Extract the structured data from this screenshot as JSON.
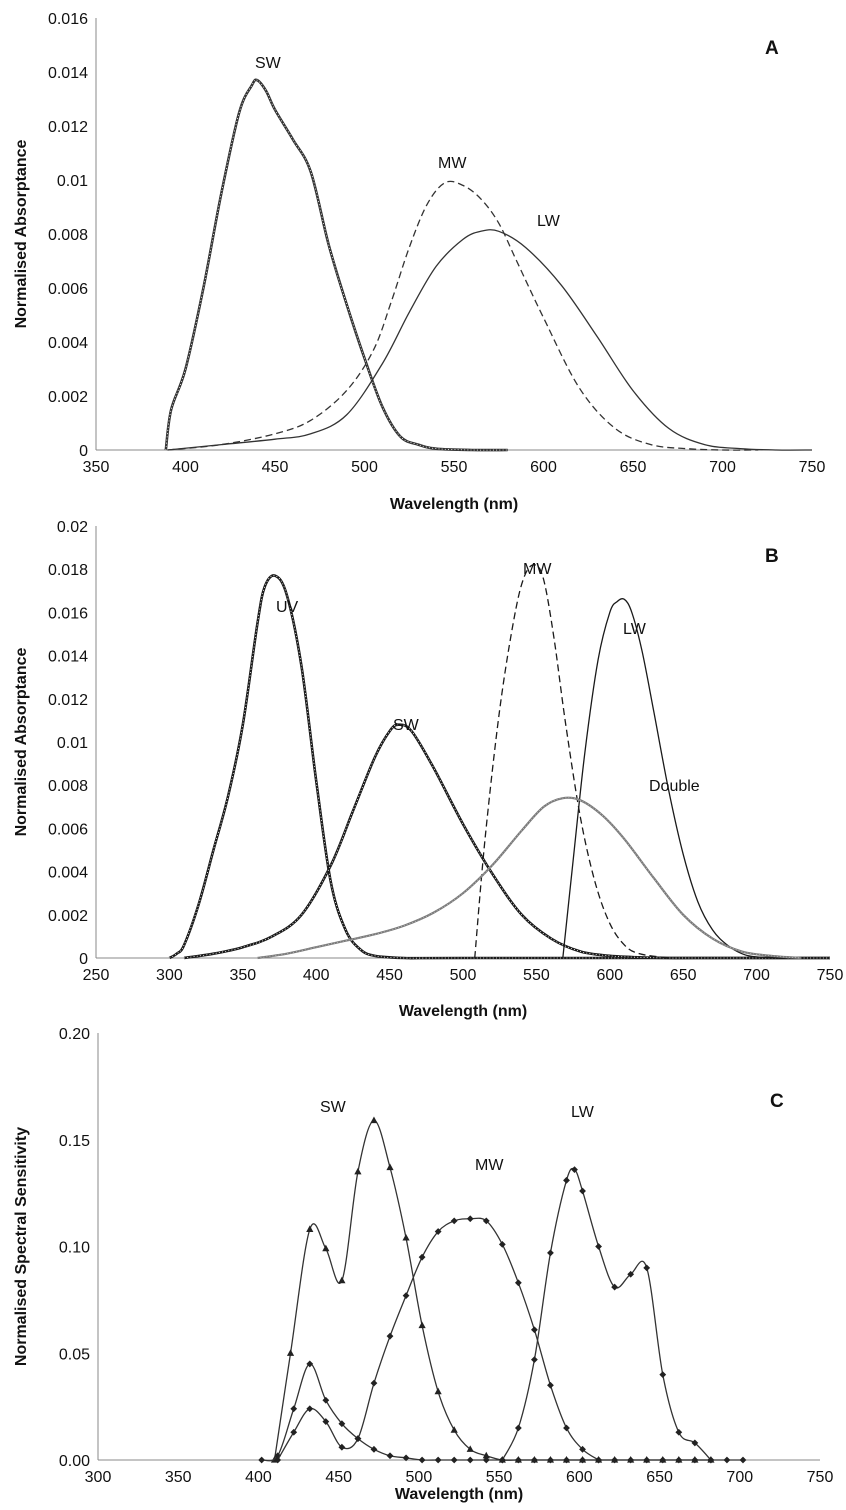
{
  "chart_data": [
    {
      "type": "line",
      "panel_label": "A",
      "xlabel": "Wavelength (nm)",
      "ylabel": "Normalised Absorptance",
      "xlim": [
        350,
        750
      ],
      "ylim": [
        0,
        0.016
      ],
      "x_ticks": [
        "350",
        "400",
        "450",
        "500",
        "550",
        "600",
        "650",
        "700",
        "750"
      ],
      "y_ticks": [
        "0",
        "0.002",
        "0.004",
        "0.006",
        "0.008",
        "0.01",
        "0.012",
        "0.014",
        "0.016"
      ],
      "grid": false,
      "legend": "none (series labelled directly)",
      "series": [
        {
          "name": "SW",
          "style": "dotted-heavy",
          "color": "#333333",
          "x": [
            389,
            392,
            400,
            410,
            420,
            430,
            437,
            440,
            445,
            450,
            460,
            470,
            480,
            490,
            500,
            510,
            520,
            530,
            540,
            560,
            580
          ],
          "y": [
            0,
            0.0015,
            0.003,
            0.006,
            0.0095,
            0.0125,
            0.0135,
            0.0137,
            0.0133,
            0.0126,
            0.0115,
            0.0103,
            0.0076,
            0.0054,
            0.0034,
            0.0016,
            0.0005,
            0.0002,
            5e-05,
            0,
            0
          ]
        },
        {
          "name": "MW",
          "style": "dashed",
          "color": "#333333",
          "x": [
            390,
            420,
            450,
            470,
            490,
            505,
            515,
            525,
            535,
            545,
            555,
            565,
            575,
            585,
            600,
            620,
            640,
            660,
            680,
            700,
            720
          ],
          "y": [
            0,
            0.0002,
            0.0006,
            0.0011,
            0.0022,
            0.0037,
            0.0055,
            0.0075,
            0.0091,
            0.0099,
            0.0098,
            0.0093,
            0.0084,
            0.007,
            0.0049,
            0.0023,
            0.0008,
            0.0002,
            5e-05,
            0,
            0
          ]
        },
        {
          "name": "LW",
          "style": "solid",
          "color": "#333333",
          "x": [
            390,
            420,
            450,
            470,
            490,
            510,
            525,
            540,
            555,
            565,
            575,
            590,
            610,
            630,
            650,
            670,
            690,
            710,
            730,
            750
          ],
          "y": [
            0,
            0.0002,
            0.0004,
            0.0006,
            0.0013,
            0.0032,
            0.0051,
            0.0068,
            0.0078,
            0.0081,
            0.0081,
            0.0075,
            0.0061,
            0.0042,
            0.0022,
            0.0008,
            0.0002,
            5e-05,
            0,
            0
          ]
        }
      ]
    },
    {
      "type": "line",
      "panel_label": "B",
      "xlabel": "Wavelength (nm)",
      "ylabel": "Normalised Absorptance",
      "xlim": [
        250,
        750
      ],
      "ylim": [
        0,
        0.02
      ],
      "x_ticks": [
        "250",
        "300",
        "350",
        "400",
        "450",
        "500",
        "550",
        "600",
        "650",
        "700",
        "750"
      ],
      "y_ticks": [
        "0",
        "0.002",
        "0.004",
        "0.006",
        "0.008",
        "0.01",
        "0.012",
        "0.014",
        "0.016",
        "0.018",
        "0.02"
      ],
      "grid": false,
      "legend": "none (series labelled directly)",
      "series": [
        {
          "name": "UV",
          "style": "dotted-heavy",
          "color": "#1a1a1a",
          "x": [
            300,
            305,
            310,
            320,
            330,
            340,
            350,
            360,
            365,
            372,
            380,
            390,
            400,
            410,
            420,
            430,
            440,
            460,
            500,
            750
          ],
          "y": [
            0,
            0.0002,
            0.0006,
            0.0025,
            0.005,
            0.0075,
            0.0108,
            0.0155,
            0.0172,
            0.0177,
            0.0168,
            0.0135,
            0.0082,
            0.0035,
            0.0013,
            0.0004,
            0.0001,
            0,
            0,
            0
          ]
        },
        {
          "name": "SW",
          "style": "dotted-heavy",
          "color": "#1a1a1a",
          "x": [
            310,
            330,
            350,
            370,
            390,
            410,
            425,
            440,
            450,
            456,
            465,
            480,
            500,
            520,
            540,
            560,
            580,
            600,
            620,
            640,
            660,
            750
          ],
          "y": [
            0,
            0.0002,
            0.0005,
            0.001,
            0.002,
            0.0043,
            0.0068,
            0.0093,
            0.0105,
            0.0108,
            0.0105,
            0.0088,
            0.0062,
            0.0039,
            0.002,
            0.0009,
            0.0003,
            0.0001,
            3e-05,
            0,
            0,
            0
          ]
        },
        {
          "name": "MW",
          "style": "dashed",
          "color": "#1a1a1a",
          "x": [
            508,
            515,
            525,
            535,
            542,
            549,
            555,
            562,
            570,
            580,
            590,
            600,
            610,
            620,
            640
          ],
          "y": [
            0,
            0.0055,
            0.0115,
            0.0158,
            0.0177,
            0.0182,
            0.0175,
            0.0148,
            0.0108,
            0.0065,
            0.0035,
            0.0016,
            0.0006,
            0.0002,
            0
          ]
        },
        {
          "name": "LW",
          "style": "solid",
          "color": "#1a1a1a",
          "x": [
            568,
            575,
            583,
            592,
            600,
            605,
            610,
            615,
            622,
            630,
            640,
            650,
            660,
            670,
            680,
            690,
            700,
            720
          ],
          "y": [
            0,
            0.0045,
            0.0095,
            0.0138,
            0.016,
            0.0165,
            0.0166,
            0.016,
            0.0142,
            0.0114,
            0.0078,
            0.0048,
            0.0026,
            0.0013,
            0.0006,
            0.0002,
            5e-05,
            0
          ]
        },
        {
          "name": "Double",
          "style": "solid-gray-dotted",
          "color": "#7a7a7a",
          "x": [
            360,
            380,
            400,
            420,
            440,
            460,
            480,
            500,
            520,
            540,
            555,
            568,
            580,
            595,
            610,
            630,
            650,
            670,
            690,
            710,
            730
          ],
          "y": [
            0,
            0.0002,
            0.0005,
            0.0008,
            0.0011,
            0.0015,
            0.0021,
            0.003,
            0.0043,
            0.0059,
            0.007,
            0.0074,
            0.0073,
            0.0066,
            0.0055,
            0.0037,
            0.002,
            0.0009,
            0.0003,
            0.0001,
            0
          ]
        }
      ]
    },
    {
      "type": "line",
      "panel_label": "C",
      "xlabel": "Wavelength (nm)",
      "ylabel": "Normalised Spectral Sensitivity",
      "xlim": [
        300,
        750
      ],
      "ylim": [
        0,
        0.2
      ],
      "x_ticks": [
        "300",
        "350",
        "400",
        "450",
        "500",
        "550",
        "600",
        "650",
        "700",
        "750"
      ],
      "y_ticks": [
        "0.00",
        "0.05",
        "0.10",
        "0.15",
        "0.20"
      ],
      "grid": false,
      "legend": "none (series labelled directly)",
      "series": [
        {
          "name": "SW",
          "marker": "triangle",
          "color": "#333333",
          "x": [
            410,
            420,
            432,
            442,
            452,
            462,
            472,
            482,
            492,
            502,
            512,
            522,
            532,
            542,
            552,
            562,
            572,
            582,
            592,
            602,
            612,
            622,
            632,
            642,
            652,
            662,
            672,
            682
          ],
          "y": [
            0,
            0.05,
            0.108,
            0.099,
            0.084,
            0.135,
            0.159,
            0.137,
            0.104,
            0.063,
            0.032,
            0.014,
            0.005,
            0.002,
            0,
            0,
            0,
            0,
            0,
            0,
            0,
            0,
            0,
            0,
            0,
            0,
            0,
            0
          ]
        },
        {
          "name": "",
          "marker": "diamond",
          "color": "#333333",
          "x": [
            402,
            412,
            422,
            432,
            442,
            452,
            462,
            472,
            482,
            492,
            502,
            512,
            522,
            532,
            542,
            552,
            562,
            572,
            582,
            592,
            602,
            612,
            622,
            632,
            642,
            652,
            662,
            672,
            682,
            692,
            702
          ],
          "y": [
            0,
            0.002,
            0.024,
            0.045,
            0.028,
            0.017,
            0.01,
            0.005,
            0.002,
            0.001,
            0,
            0,
            0,
            0,
            0,
            0,
            0,
            0,
            0,
            0,
            0,
            0,
            0,
            0,
            0,
            0,
            0,
            0,
            0,
            0,
            0
          ]
        },
        {
          "name": "MW",
          "marker": "diamond",
          "color": "#333333",
          "x": [
            412,
            422,
            432,
            442,
            452,
            462,
            472,
            482,
            492,
            502,
            512,
            522,
            532,
            542,
            552,
            562,
            572,
            582,
            592,
            602,
            612
          ],
          "y": [
            0,
            0.013,
            0.024,
            0.018,
            0.006,
            0.01,
            0.036,
            0.058,
            0.077,
            0.095,
            0.107,
            0.112,
            0.113,
            0.112,
            0.101,
            0.083,
            0.061,
            0.035,
            0.015,
            0.005,
            0
          ]
        },
        {
          "name": "LW",
          "marker": "diamond",
          "color": "#333333",
          "x": [
            552,
            562,
            572,
            582,
            592,
            597,
            602,
            612,
            622,
            632,
            642,
            652,
            662,
            672,
            682
          ],
          "y": [
            0,
            0.015,
            0.047,
            0.097,
            0.131,
            0.136,
            0.126,
            0.1,
            0.081,
            0.087,
            0.09,
            0.04,
            0.013,
            0.008,
            0
          ]
        }
      ]
    }
  ]
}
